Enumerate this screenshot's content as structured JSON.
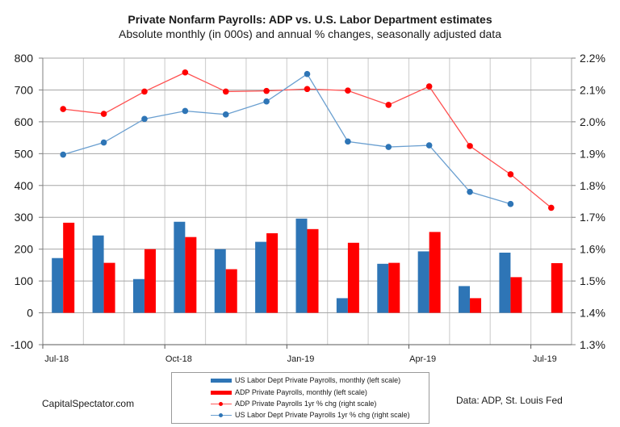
{
  "chart_data": {
    "type": "bar+line",
    "title": "Private Nonfarm Payrolls: ADP vs. U.S. Labor Department estimates",
    "subtitle": "Absolute monthly (in 000s) and annual % changes, seasonally adjusted data",
    "categories": [
      "Jul-18",
      "Aug-18",
      "Sep-18",
      "Oct-18",
      "Nov-18",
      "Dec-18",
      "Jan-19",
      "Feb-19",
      "Mar-19",
      "Apr-19",
      "May-19",
      "Jun-19",
      "Jul-19"
    ],
    "x_tick_labels": [
      "Jul-18",
      "",
      "",
      "Oct-18",
      "",
      "",
      "Jan-19",
      "",
      "",
      "Apr-19",
      "",
      "",
      "Jul-19"
    ],
    "left_axis": {
      "label": "",
      "ylim": [
        -100,
        800
      ],
      "ticks": [
        "-100",
        "0",
        "100",
        "200",
        "300",
        "400",
        "500",
        "600",
        "700",
        "800"
      ]
    },
    "right_axis": {
      "label": "",
      "ylim": [
        1.3,
        2.2
      ],
      "ticks": [
        "1.3%",
        "1.4%",
        "1.5%",
        "1.6%",
        "1.7%",
        "1.8%",
        "1.9%",
        "2.0%",
        "2.1%",
        "2.2%"
      ]
    },
    "grid": true,
    "legend_position": "bottom-center",
    "series": [
      {
        "name": "US Labor Dept Private Payrolls, monthly (left scale)",
        "type": "bar",
        "axis": "left",
        "color": "#2E75B6",
        "values": [
          172,
          243,
          106,
          286,
          200,
          223,
          296,
          46,
          154,
          193,
          84,
          189,
          null
        ]
      },
      {
        "name": "ADP Private Payrolls, monthly (left scale)",
        "type": "bar",
        "axis": "left",
        "color": "#FF0000",
        "values": [
          283,
          157,
          200,
          238,
          137,
          250,
          263,
          220,
          157,
          254,
          46,
          112,
          156
        ]
      },
      {
        "name": "ADP Private Payrolls 1yr % chg (right scale)",
        "type": "line",
        "axis": "right",
        "color": "#FF0000",
        "values": [
          2.04,
          2.025,
          2.095,
          2.155,
          2.095,
          2.097,
          2.103,
          2.098,
          2.053,
          2.111,
          1.924,
          1.835,
          1.73
        ]
      },
      {
        "name": "US Labor Dept Private Payrolls 1yr % chg (right scale)",
        "type": "line",
        "axis": "right",
        "color": "#2E75B6",
        "values": [
          1.897,
          1.935,
          2.009,
          2.034,
          2.023,
          2.064,
          2.15,
          1.938,
          1.921,
          1.926,
          1.78,
          1.742,
          null
        ]
      }
    ]
  },
  "footer": {
    "source_left": "CapitalSpectator.com",
    "source_right": "Data: ADP, St. Louis Fed"
  }
}
